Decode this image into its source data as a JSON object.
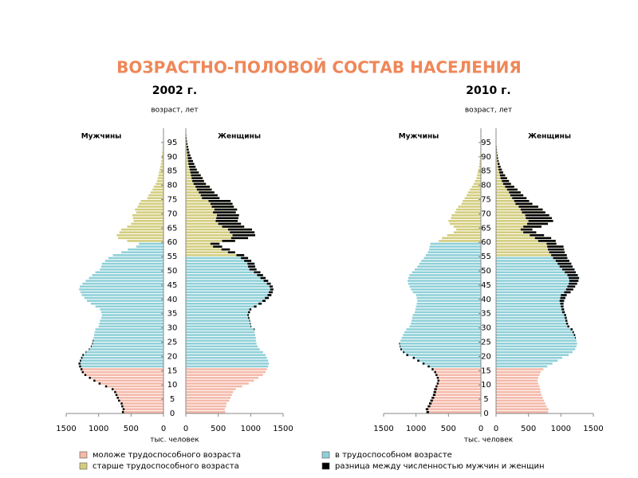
{
  "title": "ВОЗРАСТНО-ПОЛОВОЙ СОСТАВ НАСЕЛЕНИЯ",
  "ages": [
    0,
    1,
    2,
    3,
    4,
    5,
    6,
    7,
    8,
    9,
    10,
    11,
    12,
    13,
    14,
    15,
    16,
    17,
    18,
    19,
    20,
    21,
    22,
    23,
    24,
    25,
    26,
    27,
    28,
    29,
    30,
    31,
    32,
    33,
    34,
    35,
    36,
    37,
    38,
    39,
    40,
    41,
    42,
    43,
    44,
    45,
    46,
    47,
    48,
    49,
    50,
    51,
    52,
    53,
    54,
    55,
    56,
    57,
    58,
    59,
    60,
    61,
    62,
    63,
    64,
    65,
    66,
    67,
    68,
    69,
    70,
    71,
    72,
    73,
    74,
    75,
    76,
    77,
    78,
    79,
    80,
    81,
    82,
    83,
    84,
    85,
    86,
    87,
    88,
    89,
    90,
    91,
    92,
    93,
    94,
    95,
    96,
    97,
    98,
    99
  ],
  "legend": [
    {
      "name": "моложе трудоспособного возраста",
      "color": "#f4b9a9"
    },
    {
      "name": "в трудоспособном возрасте",
      "color": "#8fd0d8"
    },
    {
      "name": "старше трудоспособного возраста",
      "color": "#d3cd7e"
    },
    {
      "name": "разница между численностью мужчин и женщин",
      "color": "#000000"
    }
  ],
  "chart_data": [
    {
      "type": "population_pyramid",
      "title": "2002 г.",
      "y_label": "возраст, лет",
      "x_label": "тыс. человек",
      "ylim": [
        0,
        100
      ],
      "yticks": [
        0,
        5,
        10,
        15,
        20,
        25,
        30,
        35,
        40,
        45,
        50,
        55,
        60,
        65,
        70,
        75,
        80,
        85,
        90,
        95
      ],
      "xlim": [
        0,
        1500
      ],
      "men": {
        "name": "Мужчины",
        "group_starts": [
          0,
          16,
          60
        ],
        "xticks": [
          1500,
          1000,
          500,
          0
        ],
        "values": [
          640,
          630,
          650,
          660,
          700,
          720,
          740,
          760,
          800,
          900,
          1000,
          1080,
          1150,
          1220,
          1260,
          1280,
          1300,
          1310,
          1290,
          1270,
          1250,
          1200,
          1150,
          1120,
          1100,
          1090,
          1080,
          1070,
          1060,
          1050,
          1000,
          990,
          980,
          960,
          950,
          960,
          980,
          1050,
          1120,
          1180,
          1220,
          1260,
          1280,
          1300,
          1290,
          1250,
          1200,
          1150,
          1100,
          1050,
          980,
          960,
          950,
          900,
          850,
          780,
          650,
          550,
          420,
          380,
          560,
          700,
          720,
          680,
          650,
          560,
          500,
          460,
          470,
          480,
          420,
          440,
          400,
          380,
          350,
          250,
          230,
          200,
          170,
          150,
          120,
          100,
          90,
          80,
          70,
          60,
          50,
          40,
          35,
          30,
          25,
          20,
          15,
          12,
          10,
          8,
          6,
          5,
          4,
          3
        ]
      },
      "women": {
        "name": "Женщины",
        "group_starts": [
          0,
          16,
          55
        ],
        "xticks": [
          0,
          500,
          1000,
          1500
        ],
        "values": [
          610,
          600,
          620,
          630,
          670,
          690,
          710,
          730,
          770,
          870,
          970,
          1050,
          1120,
          1190,
          1230,
          1250,
          1270,
          1280,
          1270,
          1250,
          1230,
          1190,
          1140,
          1110,
          1090,
          1080,
          1080,
          1070,
          1060,
          1060,
          1010,
          1000,
          990,
          980,
          970,
          990,
          1010,
          1090,
          1170,
          1230,
          1280,
          1320,
          1340,
          1350,
          1340,
          1310,
          1270,
          1230,
          1190,
          1150,
          1090,
          1070,
          1060,
          1010,
          960,
          900,
          760,
          680,
          560,
          520,
          760,
          960,
          1070,
          1060,
          1020,
          900,
          850,
          800,
          810,
          820,
          770,
          790,
          740,
          720,
          690,
          520,
          490,
          440,
          400,
          370,
          310,
          280,
          260,
          230,
          200,
          170,
          150,
          130,
          110,
          90,
          70,
          55,
          45,
          35,
          25,
          18,
          12,
          8,
          5,
          3
        ]
      }
    },
    {
      "type": "population_pyramid",
      "title": "2010 г.",
      "y_label": "возраст, лет",
      "x_label": "тыс. человек",
      "ylim": [
        0,
        100
      ],
      "yticks": [
        0,
        5,
        10,
        15,
        20,
        25,
        30,
        35,
        40,
        45,
        50,
        55,
        60,
        65,
        70,
        75,
        80,
        85,
        90,
        95
      ],
      "xlim": [
        0,
        1500
      ],
      "men": {
        "name": "Мужчины",
        "group_starts": [
          0,
          16,
          60
        ],
        "xticks": [
          1500,
          1000,
          500,
          0
        ],
        "values": [
          840,
          850,
          820,
          800,
          780,
          760,
          740,
          730,
          720,
          700,
          680,
          670,
          680,
          700,
          720,
          760,
          820,
          900,
          980,
          1050,
          1150,
          1200,
          1240,
          1250,
          1260,
          1240,
          1220,
          1200,
          1180,
          1150,
          1100,
          1080,
          1070,
          1060,
          1050,
          1020,
          1010,
          1000,
          990,
          980,
          990,
          1000,
          1050,
          1080,
          1100,
          1120,
          1130,
          1120,
          1100,
          1060,
          1020,
          980,
          950,
          920,
          880,
          850,
          820,
          800,
          790,
          780,
          650,
          600,
          520,
          420,
          380,
          420,
          480,
          500,
          460,
          450,
          400,
          380,
          350,
          300,
          280,
          250,
          220,
          200,
          170,
          140,
          110,
          90,
          70,
          60,
          50,
          40,
          32,
          25,
          20,
          15,
          12,
          10,
          8,
          6,
          5,
          4,
          3,
          2,
          2,
          1
        ]
      },
      "women": {
        "name": "Женщины",
        "group_starts": [
          0,
          16,
          55
        ],
        "xticks": [
          0,
          500,
          1000,
          1500
        ],
        "values": [
          800,
          810,
          780,
          760,
          740,
          720,
          700,
          690,
          680,
          670,
          650,
          640,
          650,
          670,
          690,
          730,
          790,
          870,
          950,
          1020,
          1120,
          1180,
          1220,
          1240,
          1250,
          1240,
          1230,
          1220,
          1200,
          1180,
          1130,
          1110,
          1100,
          1090,
          1080,
          1060,
          1050,
          1040,
          1040,
          1050,
          1070,
          1090,
          1150,
          1190,
          1220,
          1250,
          1270,
          1280,
          1260,
          1230,
          1210,
          1180,
          1160,
          1130,
          1100,
          1090,
          1060,
          1050,
          1040,
          930,
          920,
          850,
          740,
          620,
          560,
          700,
          800,
          880,
          860,
          820,
          760,
          720,
          650,
          560,
          510,
          470,
          420,
          380,
          330,
          280,
          230,
          200,
          170,
          140,
          110,
          90,
          70,
          55,
          40,
          30,
          22,
          16,
          12,
          8,
          5,
          4,
          3,
          2,
          2,
          1
        ]
      }
    }
  ]
}
